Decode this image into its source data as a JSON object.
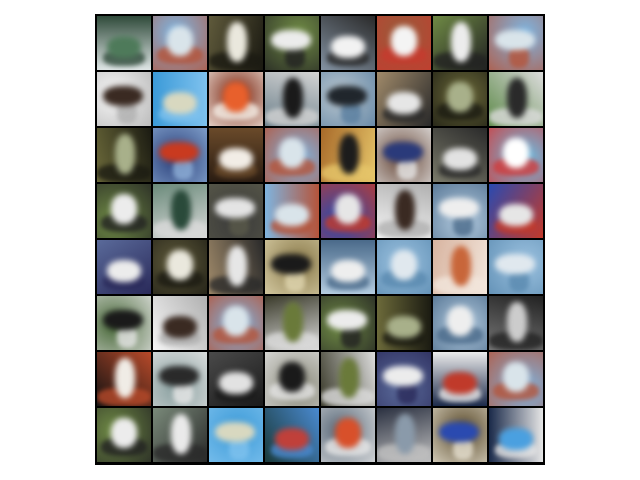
{
  "grid": {
    "rows": 8,
    "cols": 8
  },
  "tiles": [
    [
      "sky-white",
      "sky-blue",
      "dark-olive",
      "olive-green",
      "grey-blue",
      "rust",
      "olive-green",
      "sky-blue"
    ],
    [
      "white",
      "bright-blue",
      "red-orange",
      "slate",
      "light-grey",
      "tan",
      "olive",
      "green"
    ],
    [
      "olive",
      "navy-red",
      "dark-brown",
      "sky-blue",
      "orange-brown",
      "brown-blue",
      "grey",
      "cyan-white"
    ],
    [
      "olive-green",
      "green-grey",
      "dark-grey",
      "sky-blue",
      "royal-blue",
      "white",
      "pale-blue",
      "royal-blue"
    ],
    [
      "blue-grey",
      "dark-olive",
      "tan",
      "olive-tan",
      "pale-blue",
      "light-blue",
      "peach",
      "light-blue"
    ],
    [
      "green-dark",
      "white",
      "sky-blue",
      "olive-dark",
      "olive-green",
      "olive",
      "pale-blue",
      "dark-blue"
    ],
    [
      "black",
      "olive-sky",
      "grey-dark",
      "tan-grey",
      "olive-dark",
      "blue-grey",
      "navy",
      "sky-blue"
    ],
    [
      "olive-green",
      "grey-green",
      "bright-blue",
      "teal-dark",
      "slate-red",
      "navy-grey",
      "olive-brown",
      "blue-dark"
    ]
  ],
  "palette": {
    "sky-white": [
      "#dfe6e6",
      "#4e7a5a",
      "#2f4a3a"
    ],
    "sky-blue": [
      "#7fb4df",
      "#d9e4ea",
      "#b5543a"
    ],
    "dark-olive": [
      "#5f5a3b",
      "#eae8dd",
      "#1b1a12"
    ],
    "olive-green": [
      "#6f8a45",
      "#ececec",
      "#222222"
    ],
    "grey-blue": [
      "#8392a2",
      "#f2f2f2",
      "#2a2a2a"
    ],
    "rust": [
      "#9a5a3a",
      "#f4f4f4",
      "#c73a2e"
    ],
    "white": [
      "#f6f6f6",
      "#3a2a22",
      "#b0b0b0"
    ],
    "bright-blue": [
      "#3b9ad8",
      "#d8d8c0",
      "#7fc2ee"
    ],
    "red-orange": [
      "#7a2410",
      "#e8602c",
      "#f6f0e8"
    ],
    "slate": [
      "#6b7f8a",
      "#1a1a1a",
      "#d4d4d4"
    ],
    "light-grey": [
      "#b9c6cf",
      "#20262c",
      "#5a7fa0"
    ],
    "tan": [
      "#a08a6a",
      "#e6e6e6",
      "#2a2a2a"
    ],
    "olive": [
      "#6c6a3a",
      "#a8b08a",
      "#1b1b12"
    ],
    "green": [
      "#5e8a4a",
      "#2a2a2a",
      "#dcdcdc"
    ],
    "navy-red": [
      "#2a3f7a",
      "#c93a1f",
      "#8fb0d8"
    ],
    "dark-brown": [
      "#2a1c12",
      "#f2ede6",
      "#6a4a2a"
    ],
    "orange-brown": [
      "#a86a2a",
      "#1c1c1c",
      "#e6c66a"
    ],
    "brown-blue": [
      "#6a4a3a",
      "#2a3a7a",
      "#e8e8e8"
    ],
    "grey": [
      "#7a7a6a",
      "#e2e2e2",
      "#2a2a2a"
    ],
    "cyan-white": [
      "#6ac0e6",
      "#ffffff",
      "#d23a3a"
    ],
    "green-grey": [
      "#6a8a7a",
      "#2a4a3a",
      "#dadada"
    ],
    "dark-grey": [
      "#3a3a3a",
      "#e4e4e4",
      "#5a5a4a"
    ],
    "royal-blue": [
      "#2a4ab0",
      "#e6e6e6",
      "#c43a2a"
    ],
    "pale-blue": [
      "#b4cce0",
      "#eeeeee",
      "#4a6a8a"
    ],
    "blue-grey": [
      "#5a6a9a",
      "#ececec",
      "#2a2a5a"
    ],
    "olive-tan": [
      "#8a7a4a",
      "#1a1a1a",
      "#e0d6b0"
    ],
    "light-blue": [
      "#9cc2e0",
      "#e0e8ee",
      "#5a8ab0"
    ],
    "peach": [
      "#d8b4a0",
      "#c8663a",
      "#f2e6dc"
    ],
    "green-dark": [
      "#4a6a3a",
      "#1a1a1a",
      "#e6e6e6"
    ],
    "olive-dark": [
      "#3a3a2a",
      "#6a7a3a",
      "#dcdcdc"
    ],
    "black": [
      "#121212",
      "#f0ece6",
      "#b84a2a"
    ],
    "olive-sky": [
      "#8aa0a0",
      "#2a2a2a",
      "#e8e8e8"
    ],
    "grey-dark": [
      "#4a4a4a",
      "#e2e2e2",
      "#1a1a1a"
    ],
    "tan-grey": [
      "#8a8a7a",
      "#1a1a1a",
      "#e4e4e4"
    ],
    "navy": [
      "#1c2a4a",
      "#c03a2a",
      "#ececec"
    ],
    "grey-green": [
      "#7a8a7a",
      "#eaeaea",
      "#2a2a2a"
    ],
    "teal-dark": [
      "#1a3a3a",
      "#c0403a",
      "#4a8ad0"
    ],
    "slate-red": [
      "#5a6a7a",
      "#d8502a",
      "#e8e8e8"
    ],
    "navy-grey": [
      "#2a3040",
      "#8a9aaa",
      "#c0c0c0"
    ],
    "olive-brown": [
      "#5a4a2a",
      "#2a4ab0",
      "#e6e0d0"
    ],
    "blue-dark": [
      "#1a2a4a",
      "#4aa0e0",
      "#e6e6e6"
    ]
  }
}
